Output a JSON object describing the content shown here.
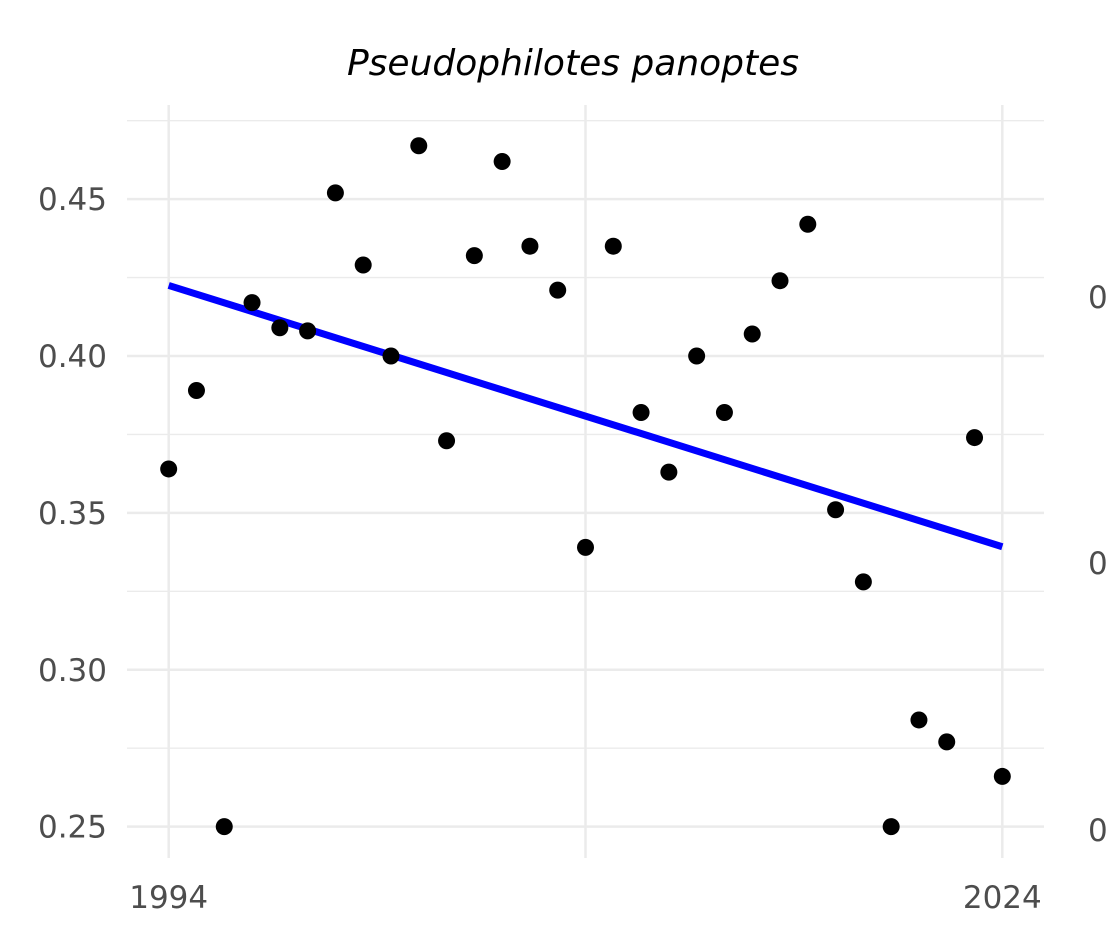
{
  "chart_data": {
    "type": "scatter",
    "title": "Pseudophilotes panoptes",
    "xlabel": "",
    "ylabel": "",
    "xlim": [
      1992.5,
      2025.5
    ],
    "ylim": [
      0.24,
      0.48
    ],
    "x_ticks": [
      1994,
      2024
    ],
    "x_tick_labels": [
      "1994",
      "2024"
    ],
    "x_gridlines": [
      1994,
      2009,
      2024
    ],
    "y_ticks": [
      0.25,
      0.3,
      0.35,
      0.4,
      0.45
    ],
    "y_tick_labels": [
      "0.25",
      "0.30",
      "0.35",
      "0.40",
      "0.45"
    ],
    "y_minor_gridlines": [
      0.275,
      0.325,
      0.375,
      0.425,
      0.475
    ],
    "right_axis_labels": [
      "0",
      "0",
      "0"
    ],
    "grid": true,
    "points_color": "#000000",
    "trend_color": "#0000ff",
    "series": [
      {
        "type": "scatter",
        "x": [
          1994,
          1995,
          1996,
          1997,
          1998,
          1999,
          2000,
          2001,
          2002,
          2003,
          2004,
          2005,
          2006,
          2007,
          2008,
          2009,
          2010,
          2011,
          2012,
          2013,
          2014,
          2015,
          2016,
          2017,
          2018,
          2019,
          2020,
          2021,
          2022,
          2023,
          2024
        ],
        "y": [
          0.364,
          0.389,
          0.25,
          0.417,
          0.409,
          0.408,
          0.452,
          0.429,
          0.4,
          0.467,
          0.373,
          0.432,
          0.462,
          0.435,
          0.421,
          0.339,
          0.435,
          0.382,
          0.363,
          0.4,
          0.382,
          0.407,
          0.424,
          0.442,
          0.351,
          0.328,
          0.25,
          0.284,
          0.277,
          0.374,
          0.266
        ]
      },
      {
        "type": "line",
        "x": [
          1994,
          2024
        ],
        "y": [
          0.4225,
          0.3392
        ]
      }
    ]
  }
}
